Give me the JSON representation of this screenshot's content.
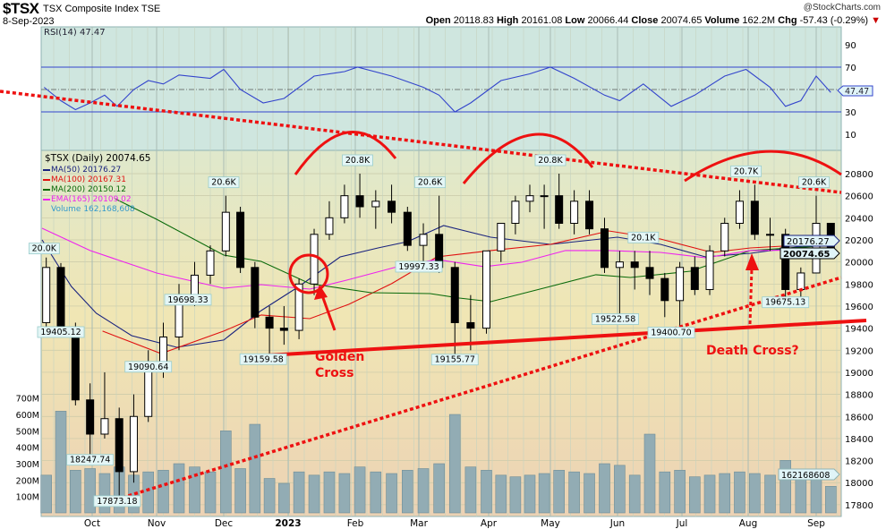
{
  "header": {
    "symbol": "$TSX",
    "name": "TSX Composite Index  TSE",
    "date": "8-Sep-2023",
    "credit": "@StockCharts.com",
    "open_label": "Open",
    "open": "20118.83",
    "high_label": "High",
    "high": "20161.08",
    "low_label": "Low",
    "low": "20066.44",
    "close_label": "Close",
    "close": "20074.65",
    "volume_label": "Volume",
    "volume": "162.2M",
    "chg_label": "Chg",
    "chg": "-57.43 (-0.29%)",
    "chg_icon": "triangle-down-icon"
  },
  "rsi_panel": {
    "legend": "RSI(14) 47.47",
    "current_value": "47.47",
    "ticks": [
      "90",
      "70",
      "50",
      "30",
      "10"
    ],
    "overbought": 70,
    "oversold": 30,
    "line_color": "#3344cc"
  },
  "price_legend": {
    "title": "$TSX (Daily) 20074.65",
    "items": [
      {
        "label": "MA(50) 20176.27",
        "color": "#1a237e"
      },
      {
        "label": "MA(100) 20167.31",
        "color": "#e01010"
      },
      {
        "label": "MA(200) 20150.12",
        "color": "#0a6a0a"
      },
      {
        "label": "EMA(165) 20109.02",
        "color": "#ee22ee"
      },
      {
        "label": "Volume 162,168,608",
        "color": "#3399cc"
      }
    ]
  },
  "right_labels": {
    "ma50": "20176.27",
    "close": "20074.65",
    "volume": "162168608"
  },
  "annotations": {
    "golden_cross_1": "Golden",
    "golden_cross_2": "Cross",
    "death_cross": "Death Cross?"
  },
  "chart_data": {
    "type": "candlestick",
    "title": "$TSX TSX Composite Index TSE",
    "x_tick_labels": [
      "Oct",
      "Nov",
      "Dec",
      "2023",
      "Feb",
      "Mar",
      "Apr",
      "May",
      "Jun",
      "Jul",
      "Aug",
      "Sep"
    ],
    "price_ticks": [
      "20800",
      "20600",
      "20400",
      "20200",
      "20000",
      "19800",
      "19600",
      "19400",
      "19200",
      "19000",
      "18800",
      "18600",
      "18400",
      "18200",
      "18000",
      "17800"
    ],
    "volume_ticks": [
      "100M",
      "200M",
      "300M",
      "400M",
      "500M",
      "600M",
      "700M"
    ],
    "ylim": [
      17700,
      20950
    ],
    "grid": true,
    "legend": "top-left",
    "candles": [
      [
        "2022-09-09",
        19450,
        20040,
        19400,
        19950,
        230
      ],
      [
        "2022-09-16",
        19950,
        19990,
        19380,
        19400,
        620
      ],
      [
        "2022-09-23",
        19400,
        19450,
        18700,
        18750,
        260
      ],
      [
        "2022-09-30",
        18750,
        18900,
        18247.74,
        18440,
        270
      ],
      [
        "2022-10-07",
        18440,
        19000,
        18400,
        18580,
        240
      ],
      [
        "2022-10-14",
        18580,
        18680,
        17873.18,
        18100,
        280
      ],
      [
        "2022-10-21",
        18100,
        18800,
        18000,
        18600,
        230
      ],
      [
        "2022-10-28",
        18600,
        19200,
        18550,
        19090,
        250
      ],
      [
        "2022-11-04",
        19090,
        19450,
        18950,
        19320,
        260
      ],
      [
        "2022-11-11",
        19320,
        19800,
        19200,
        19700,
        300
      ],
      [
        "2022-11-18",
        19700,
        20000,
        19600,
        19880,
        280
      ],
      [
        "2022-11-25",
        19880,
        20150,
        19800,
        20100,
        250
      ],
      [
        "2022-12-02",
        20100,
        20600,
        20050,
        20450,
        500
      ],
      [
        "2022-12-09",
        20450,
        20500,
        19900,
        19950,
        270
      ],
      [
        "2022-12-16",
        19950,
        20000,
        19400,
        19500,
        540
      ],
      [
        "2022-12-23",
        19500,
        19600,
        19159.58,
        19400,
        210
      ],
      [
        "2022-12-30",
        19400,
        19600,
        19250,
        19380,
        180
      ],
      [
        "2023-01-06",
        19380,
        19850,
        19300,
        19800,
        250
      ],
      [
        "2023-01-13",
        19800,
        20300,
        19700,
        20250,
        230
      ],
      [
        "2023-01-20",
        20250,
        20550,
        20200,
        20400,
        250
      ],
      [
        "2023-01-27",
        20400,
        20700,
        20350,
        20600,
        240
      ],
      [
        "2023-02-03",
        20600,
        20800,
        20400,
        20500,
        280
      ],
      [
        "2023-02-10",
        20500,
        20650,
        20300,
        20550,
        250
      ],
      [
        "2023-02-17",
        20550,
        20700,
        20350,
        20450,
        240
      ],
      [
        "2023-02-24",
        20450,
        20500,
        20100,
        20150,
        260
      ],
      [
        "2023-03-03",
        20150,
        20350,
        19997.33,
        20250,
        270
      ],
      [
        "2023-03-10",
        20250,
        20600,
        19900,
        19950,
        300
      ],
      [
        "2023-03-17",
        19950,
        20000,
        19155.77,
        19450,
        600
      ],
      [
        "2023-03-24",
        19450,
        19700,
        19200,
        19400,
        280
      ],
      [
        "2023-03-31",
        19400,
        20100,
        19350,
        20100,
        260
      ],
      [
        "2023-04-07",
        20100,
        20350,
        20000,
        20350,
        230
      ],
      [
        "2023-04-14",
        20350,
        20600,
        20250,
        20550,
        220
      ],
      [
        "2023-04-21",
        20550,
        20700,
        20450,
        20600,
        230
      ],
      [
        "2023-04-28",
        20600,
        20700,
        20300,
        20600,
        240
      ],
      [
        "2023-05-05",
        20600,
        20800,
        20300,
        20350,
        260
      ],
      [
        "2023-05-12",
        20350,
        20650,
        20250,
        20550,
        250
      ],
      [
        "2023-05-19",
        20550,
        20650,
        20250,
        20300,
        240
      ],
      [
        "2023-05-26",
        20300,
        20400,
        19900,
        19950,
        300
      ],
      [
        "2023-06-02",
        19950,
        20100,
        19522.58,
        20000,
        290
      ],
      [
        "2023-06-09",
        20000,
        20100,
        19750,
        19950,
        230
      ],
      [
        "2023-06-16",
        19950,
        20100,
        19700,
        19850,
        480
      ],
      [
        "2023-06-23",
        19850,
        19900,
        19500,
        19650,
        250
      ],
      [
        "2023-06-30",
        19650,
        20000,
        19400.7,
        19950,
        260
      ],
      [
        "2023-07-07",
        19950,
        20050,
        19700,
        19750,
        220
      ],
      [
        "2023-07-14",
        19750,
        20150,
        19700,
        20100,
        230
      ],
      [
        "2023-07-21",
        20100,
        20400,
        20050,
        20350,
        240
      ],
      [
        "2023-07-28",
        20350,
        20650,
        20300,
        20550,
        250
      ],
      [
        "2023-08-04",
        20550,
        20700,
        20200,
        20250,
        240
      ],
      [
        "2023-08-11",
        20250,
        20400,
        20100,
        20250,
        230
      ],
      [
        "2023-08-18",
        20250,
        20300,
        19675.13,
        19750,
        320
      ],
      [
        "2023-08-25",
        19750,
        19950,
        19675,
        19900,
        240
      ],
      [
        "2023-09-01",
        19900,
        20600,
        19900,
        20350,
        260
      ],
      [
        "2023-09-08",
        20350,
        20350,
        20066.44,
        20074.65,
        162
      ]
    ],
    "candle_fields": [
      "date",
      "open",
      "high",
      "low",
      "close",
      "volume_millions"
    ],
    "point_labels": [
      [
        "2022-09-08",
        20000,
        "20.0K"
      ],
      [
        "2022-09-16",
        19405.12,
        "19405.12"
      ],
      [
        "2022-09-30",
        18247.74,
        "18247.74"
      ],
      [
        "2022-10-13",
        17873.18,
        "17873.18"
      ],
      [
        "2022-10-28",
        19090.64,
        "19090.64"
      ],
      [
        "2022-11-15",
        19698.33,
        "19698.33"
      ],
      [
        "2022-12-01",
        20600,
        "20.6K"
      ],
      [
        "2022-12-20",
        19159.58,
        "19159.58"
      ],
      [
        "2023-02-02",
        20800,
        "20.8K"
      ],
      [
        "2023-03-06",
        20600,
        "20.6K"
      ],
      [
        "2023-03-01",
        19997.33,
        "19997.33"
      ],
      [
        "2023-03-17",
        19155.77,
        "19155.77"
      ],
      [
        "2023-05-01",
        20800,
        "20.8K"
      ],
      [
        "2023-05-31",
        19522.58,
        "19522.58"
      ],
      [
        "2023-06-13",
        20100,
        "20.1K"
      ],
      [
        "2023-06-26",
        19400.7,
        "19400.70"
      ],
      [
        "2023-07-31",
        20700,
        "20.7K"
      ],
      [
        "2023-08-18",
        19675.13,
        "19675.13"
      ],
      [
        "2023-08-31",
        20600,
        "20.6K"
      ]
    ],
    "series": [
      {
        "name": "MA(50)",
        "color": "#1a237e",
        "points": [
          [
            "2022-09-07",
            20200
          ],
          [
            "2022-09-21",
            19778
          ],
          [
            "2022-10-03",
            19535
          ],
          [
            "2022-10-20",
            19332
          ],
          [
            "2022-11-10",
            19227
          ],
          [
            "2022-12-01",
            19292
          ],
          [
            "2022-12-19",
            19559
          ],
          [
            "2023-01-06",
            19778
          ],
          [
            "2023-01-25",
            20046
          ],
          [
            "2023-02-11",
            20127
          ],
          [
            "2023-02-24",
            20184
          ],
          [
            "2023-03-12",
            20330
          ],
          [
            "2023-04-02",
            20224
          ],
          [
            "2023-05-01",
            20159
          ],
          [
            "2023-06-01",
            20224
          ],
          [
            "2023-06-21",
            20159
          ],
          [
            "2023-07-12",
            20046
          ],
          [
            "2023-08-02",
            20078
          ],
          [
            "2023-09-08",
            20176.27
          ]
        ]
      },
      {
        "name": "MA(100)",
        "color": "#e01010",
        "points": [
          [
            "2022-10-06",
            19373
          ],
          [
            "2022-11-03",
            19170
          ],
          [
            "2022-12-01",
            19373
          ],
          [
            "2022-12-19",
            19519
          ],
          [
            "2023-01-11",
            19486
          ],
          [
            "2023-01-29",
            19616
          ],
          [
            "2023-02-17",
            19803
          ],
          [
            "2023-03-09",
            20046
          ],
          [
            "2023-04-02",
            20103
          ],
          [
            "2023-05-01",
            20159
          ],
          [
            "2023-05-28",
            20281
          ],
          [
            "2023-06-21",
            20208
          ],
          [
            "2023-07-15",
            20086
          ],
          [
            "2023-08-02",
            20127
          ],
          [
            "2023-09-08",
            20167.31
          ]
        ]
      },
      {
        "name": "MA(200)",
        "color": "#0a6a0a",
        "points": [
          [
            "2022-10-12",
            20573
          ],
          [
            "2022-11-01",
            20386
          ],
          [
            "2022-12-01",
            20062
          ],
          [
            "2022-12-19",
            20005
          ],
          [
            "2023-01-11",
            19803
          ],
          [
            "2023-02-08",
            19721
          ],
          [
            "2023-03-06",
            19713
          ],
          [
            "2023-03-19",
            19673
          ],
          [
            "2023-04-02",
            19640
          ],
          [
            "2023-05-01",
            19778
          ],
          [
            "2023-05-22",
            19884
          ],
          [
            "2023-06-07",
            19859
          ],
          [
            "2023-07-05",
            19916
          ],
          [
            "2023-08-02",
            20103
          ],
          [
            "2023-09-08",
            20150.12
          ]
        ]
      },
      {
        "name": "EMA(165)",
        "color": "#ee22ee",
        "points": [
          [
            "2022-09-07",
            20305
          ],
          [
            "2022-09-30",
            20103
          ],
          [
            "2022-11-01",
            19900
          ],
          [
            "2022-12-01",
            19762
          ],
          [
            "2022-12-19",
            19794
          ],
          [
            "2023-01-11",
            19754
          ],
          [
            "2023-01-28",
            19835
          ],
          [
            "2023-02-21",
            19965
          ],
          [
            "2023-03-09",
            20022
          ],
          [
            "2023-03-30",
            19957
          ],
          [
            "2023-04-17",
            19997
          ],
          [
            "2023-05-08",
            20103
          ],
          [
            "2023-05-28",
            20103
          ],
          [
            "2023-06-21",
            20086
          ],
          [
            "2023-07-12",
            20038
          ],
          [
            "2023-08-02",
            20103
          ],
          [
            "2023-09-08",
            20109.02
          ]
        ]
      },
      {
        "name": "RSI(14)",
        "color": "#3344cc",
        "points": [
          [
            "2022-09-08",
            52
          ],
          [
            "2022-09-16",
            40
          ],
          [
            "2022-09-23",
            32
          ],
          [
            "2022-09-30",
            38
          ],
          [
            "2022-10-07",
            45
          ],
          [
            "2022-10-13",
            35
          ],
          [
            "2022-10-21",
            50
          ],
          [
            "2022-10-28",
            58
          ],
          [
            "2022-11-04",
            55
          ],
          [
            "2022-11-11",
            63
          ],
          [
            "2022-11-25",
            60
          ],
          [
            "2022-12-01",
            68
          ],
          [
            "2022-12-09",
            50
          ],
          [
            "2022-12-20",
            38
          ],
          [
            "2022-12-30",
            42
          ],
          [
            "2023-01-13",
            62
          ],
          [
            "2023-01-27",
            66
          ],
          [
            "2023-02-02",
            70
          ],
          [
            "2023-02-17",
            62
          ],
          [
            "2023-03-03",
            52
          ],
          [
            "2023-03-10",
            45
          ],
          [
            "2023-03-17",
            30
          ],
          [
            "2023-03-24",
            38
          ],
          [
            "2023-04-07",
            58
          ],
          [
            "2023-04-21",
            64
          ],
          [
            "2023-05-01",
            70
          ],
          [
            "2023-05-12",
            60
          ],
          [
            "2023-05-26",
            45
          ],
          [
            "2023-06-02",
            40
          ],
          [
            "2023-06-13",
            55
          ],
          [
            "2023-06-26",
            35
          ],
          [
            "2023-07-07",
            45
          ],
          [
            "2023-07-21",
            62
          ],
          [
            "2023-07-31",
            68
          ],
          [
            "2023-08-11",
            52
          ],
          [
            "2023-08-18",
            35
          ],
          [
            "2023-08-25",
            40
          ],
          [
            "2023-09-01",
            62
          ],
          [
            "2023-09-08",
            47.47
          ]
        ]
      }
    ]
  }
}
